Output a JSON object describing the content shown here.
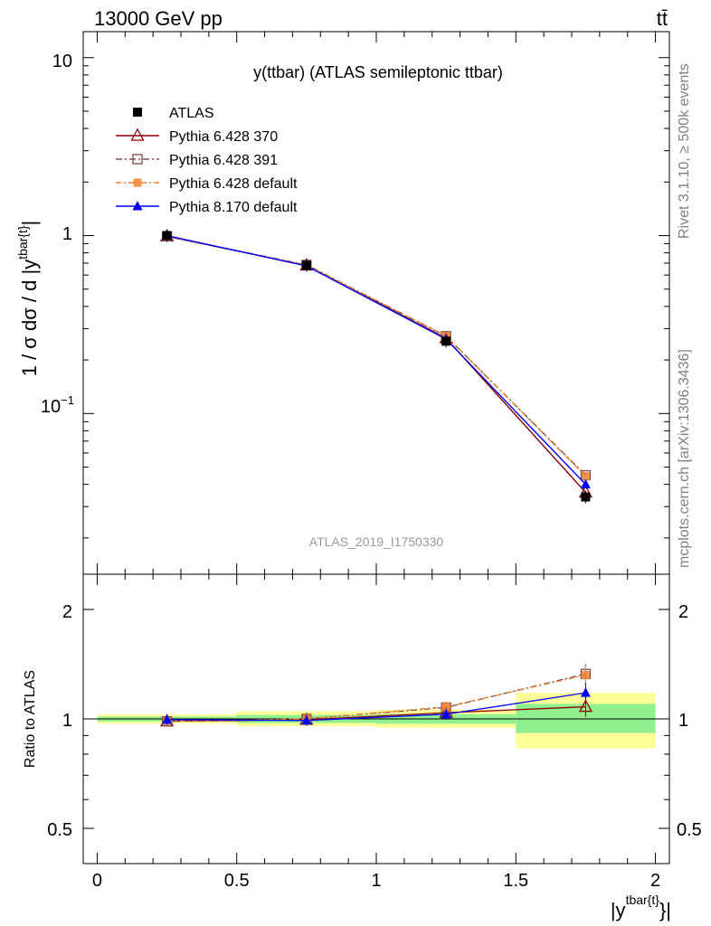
{
  "header": {
    "left": "13000 GeV pp",
    "right": "tt̄"
  },
  "side_labels": {
    "rivet": "Rivet 3.1.10, ≥ 500k events",
    "mcplots": "mcplots.cern.ch [arXiv:1306.3436]"
  },
  "watermark": "ATLAS_2019_I1750330",
  "colors": {
    "atlas": "#000000",
    "p370": "#8b0000",
    "p391": "#7b4a4a",
    "p6def": "#f08030",
    "p8def": "#0000ff",
    "band_inner": "#90f090",
    "band_outer": "#ffff99"
  },
  "chart_data": [
    {
      "type": "line",
      "title": "y(ttbar) (ATLAS semileptonic ttbar)",
      "ylabel": "1 / σ dσ / d |y^{tbar{t}}|",
      "xlabel": "",
      "yscale": "log",
      "ylim": [
        0.0125,
        14
      ],
      "xlim": [
        -0.05,
        2.05
      ],
      "ytick_labels": [
        "10",
        "1",
        "10^{-1}"
      ],
      "legend_position": "top-left",
      "x": [
        0.25,
        0.75,
        1.25,
        1.75
      ],
      "x_edges": [
        0,
        0.5,
        1,
        1.5,
        2
      ],
      "series": [
        {
          "name": "ATLAS",
          "key": "atlas",
          "marker": "square-filled",
          "values": [
            1.0,
            0.68,
            0.255,
            0.034
          ]
        },
        {
          "name": "Pythia 6.428 370",
          "key": "p370",
          "marker": "triangle-open",
          "values": [
            0.99,
            0.68,
            0.265,
            0.036
          ]
        },
        {
          "name": "Pythia 6.428 391",
          "key": "p391",
          "marker": "square-open",
          "values": [
            0.99,
            0.685,
            0.272,
            0.045
          ]
        },
        {
          "name": "Pythia 6.428 default",
          "key": "p6def",
          "marker": "square-filled-small",
          "values": [
            0.99,
            0.68,
            0.273,
            0.0445
          ]
        },
        {
          "name": "Pythia 8.170 default",
          "key": "p8def",
          "marker": "triangle-filled",
          "values": [
            1.0,
            0.675,
            0.262,
            0.04
          ]
        }
      ]
    },
    {
      "type": "line",
      "ylabel": "Ratio to ATLAS",
      "xlabel": "|y^{tbar{t}}|",
      "yscale": "log",
      "ylim": [
        0.4,
        2.5
      ],
      "xlim": [
        -0.05,
        2.05
      ],
      "ytick_labels": [
        "2",
        "1",
        "0.5"
      ],
      "xtick_labels": [
        "0",
        "0.5",
        "1",
        "1.5",
        "2"
      ],
      "bands": [
        {
          "x0": 0,
          "x1": 0.5,
          "inner": [
            0.985,
            1.015
          ],
          "outer": [
            0.97,
            1.03
          ]
        },
        {
          "x0": 0.5,
          "x1": 1,
          "inner": [
            0.975,
            1.025
          ],
          "outer": [
            0.955,
            1.05
          ]
        },
        {
          "x0": 1,
          "x1": 1.5,
          "inner": [
            0.97,
            1.03
          ],
          "outer": [
            0.945,
            1.06
          ]
        },
        {
          "x0": 1.5,
          "x1": 2,
          "inner": [
            0.915,
            1.1
          ],
          "outer": [
            0.83,
            1.18
          ]
        }
      ],
      "x": [
        0.25,
        0.75,
        1.25,
        1.75
      ],
      "series": [
        {
          "name": "Pythia 6.428 370",
          "key": "p370",
          "values": [
            0.985,
            0.995,
            1.04,
            1.08
          ]
        },
        {
          "name": "Pythia 6.428 391",
          "key": "p391",
          "values": [
            0.985,
            1.0,
            1.075,
            1.33
          ]
        },
        {
          "name": "Pythia 6.428 default",
          "key": "p6def",
          "values": [
            0.985,
            1.0,
            1.08,
            1.32
          ]
        },
        {
          "name": "Pythia 8.170 default",
          "key": "p8def",
          "values": [
            0.995,
            0.99,
            1.03,
            1.18
          ]
        }
      ]
    }
  ]
}
